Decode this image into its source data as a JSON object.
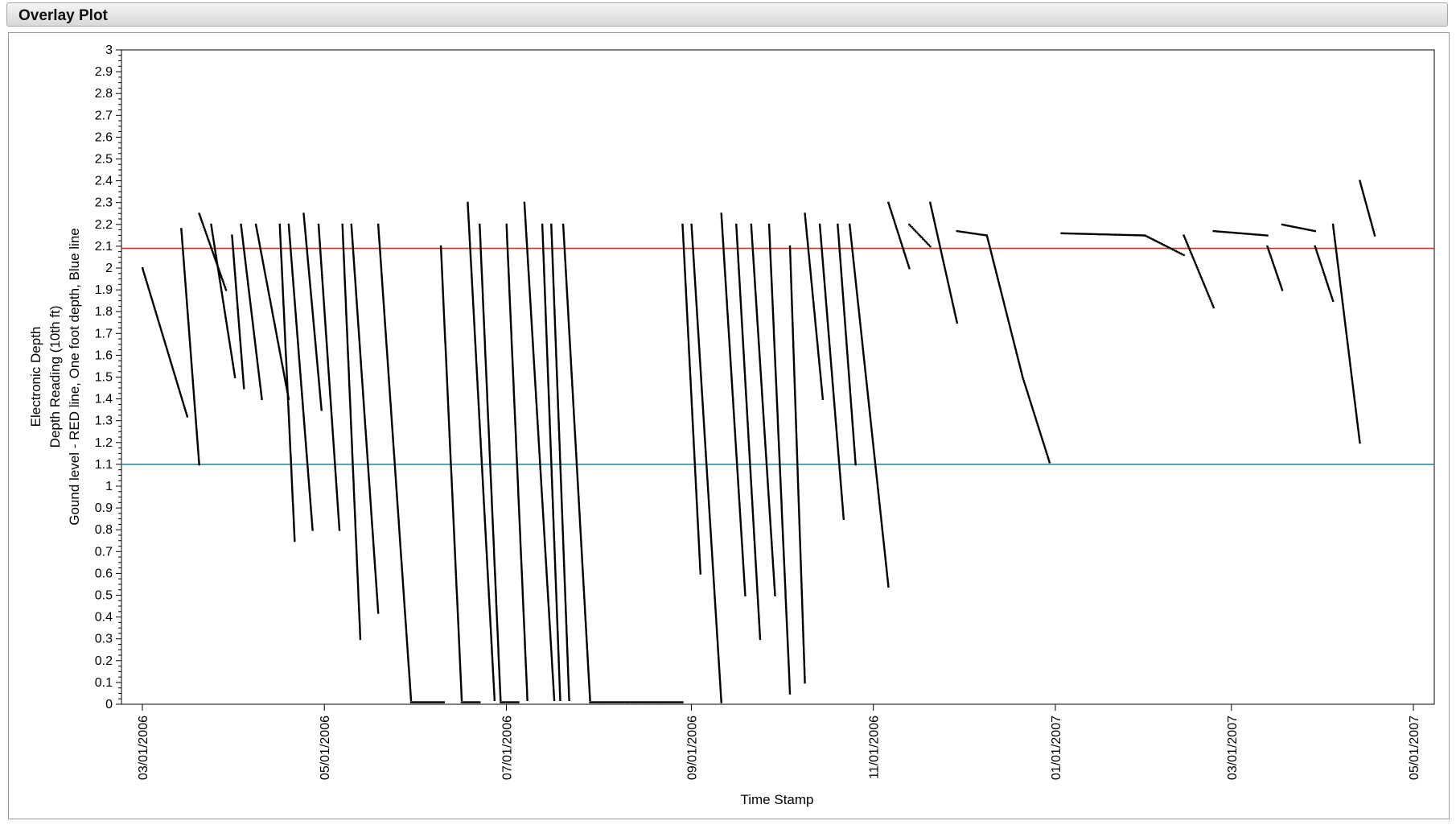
{
  "window": {
    "title": "Overlay Plot"
  },
  "chart_data": {
    "type": "scatter",
    "title": "",
    "xlabel": "Time Stamp",
    "ylabel_lines": [
      "Electronic Depth",
      "Depth Reading (10th ft)",
      "Gound level - RED line, One foot depth, Blue line"
    ],
    "ylim": [
      0,
      3
    ],
    "yticks": [
      "0",
      "0.1",
      "0.2",
      "0.3",
      "0.4",
      "0.5",
      "0.6",
      "0.7",
      "0.8",
      "0.9",
      "1",
      "1.1",
      "1.2",
      "1.3",
      "1.4",
      "1.5",
      "1.6",
      "1.7",
      "1.8",
      "1.9",
      "2",
      "2.1",
      "2.2",
      "2.3",
      "2.4",
      "2.5",
      "2.6",
      "2.7",
      "2.8",
      "2.9",
      "3"
    ],
    "xlim": [
      "2006-02-22",
      "2007-05-08"
    ],
    "xticks": [
      {
        "date": "2006-03-01",
        "label": "03/01/2006"
      },
      {
        "date": "2006-05-01",
        "label": "05/01/2006"
      },
      {
        "date": "2006-07-01",
        "label": "07/01/2006"
      },
      {
        "date": "2006-09-01",
        "label": "09/01/2006"
      },
      {
        "date": "2006-11-01",
        "label": "11/01/2006"
      },
      {
        "date": "2007-01-01",
        "label": "01/01/2007"
      },
      {
        "date": "2007-03-01",
        "label": "03/01/2007"
      },
      {
        "date": "2007-05-01",
        "label": "05/01/2007"
      }
    ],
    "grid": false,
    "reference_lines": [
      {
        "y": 2.09,
        "color": "#c0392b"
      },
      {
        "y": 1.1,
        "color": "#2a8fa0"
      }
    ],
    "series_color": "#000000",
    "segments": [
      {
        "start": "2006-03-01",
        "end": "2006-03-16",
        "y0": 2.0,
        "y1": 1.32
      },
      {
        "start": "2006-03-14",
        "end": "2006-03-20",
        "y0": 2.18,
        "y1": 1.1
      },
      {
        "start": "2006-03-20",
        "end": "2006-03-29",
        "y0": 2.25,
        "y1": 1.9
      },
      {
        "start": "2006-03-24",
        "end": "2006-04-01",
        "y0": 2.2,
        "y1": 1.5
      },
      {
        "start": "2006-03-31",
        "end": "2006-04-04",
        "y0": 2.15,
        "y1": 1.45
      },
      {
        "start": "2006-04-03",
        "end": "2006-04-10",
        "y0": 2.2,
        "y1": 1.4
      },
      {
        "start": "2006-04-08",
        "end": "2006-04-19",
        "y0": 2.2,
        "y1": 1.4
      },
      {
        "start": "2006-04-16",
        "end": "2006-04-21",
        "y0": 2.2,
        "y1": 0.75
      },
      {
        "start": "2006-04-19",
        "end": "2006-04-27",
        "y0": 2.2,
        "y1": 0.8
      },
      {
        "start": "2006-04-24",
        "end": "2006-04-30",
        "y0": 2.25,
        "y1": 1.35
      },
      {
        "start": "2006-04-29",
        "end": "2006-05-06",
        "y0": 2.2,
        "y1": 0.8
      },
      {
        "start": "2006-05-07",
        "end": "2006-05-13",
        "y0": 2.2,
        "y1": 0.3
      },
      {
        "start": "2006-05-10",
        "end": "2006-05-19",
        "y0": 2.2,
        "y1": 0.42
      },
      {
        "start": "2006-05-19",
        "end": "2006-05-30",
        "y0": 2.2,
        "y1": 0.02
      },
      {
        "start": "2006-05-30",
        "end": "2006-06-10",
        "y0": 0.01,
        "y1": 0.01
      },
      {
        "start": "2006-06-09",
        "end": "2006-06-16",
        "y0": 2.1,
        "y1": 0.02
      },
      {
        "start": "2006-06-16",
        "end": "2006-06-22",
        "y0": 0.01,
        "y1": 0.01
      },
      {
        "start": "2006-06-18",
        "end": "2006-06-27",
        "y0": 2.3,
        "y1": 0.02
      },
      {
        "start": "2006-06-22",
        "end": "2006-06-29",
        "y0": 2.2,
        "y1": 0.02
      },
      {
        "start": "2006-06-29",
        "end": "2006-07-05",
        "y0": 0.01,
        "y1": 0.01
      },
      {
        "start": "2006-07-01",
        "end": "2006-07-08",
        "y0": 2.2,
        "y1": 0.02
      },
      {
        "start": "2006-07-07",
        "end": "2006-07-17",
        "y0": 2.3,
        "y1": 0.02
      },
      {
        "start": "2006-07-13",
        "end": "2006-07-19",
        "y0": 2.2,
        "y1": 0.02
      },
      {
        "start": "2006-07-16",
        "end": "2006-07-22",
        "y0": 2.2,
        "y1": 0.02
      },
      {
        "start": "2006-07-20",
        "end": "2006-07-29",
        "y0": 2.2,
        "y1": 0.02
      },
      {
        "start": "2006-07-29",
        "end": "2006-08-29",
        "y0": 0.01,
        "y1": 0.01
      },
      {
        "start": "2006-08-29",
        "end": "2006-09-04",
        "y0": 2.2,
        "y1": 0.6
      },
      {
        "start": "2006-09-01",
        "end": "2006-09-11",
        "y0": 2.2,
        "y1": 0.01
      },
      {
        "start": "2006-09-11",
        "end": "2006-09-19",
        "y0": 2.25,
        "y1": 0.5
      },
      {
        "start": "2006-09-16",
        "end": "2006-09-24",
        "y0": 2.2,
        "y1": 0.3
      },
      {
        "start": "2006-09-21",
        "end": "2006-09-29",
        "y0": 2.2,
        "y1": 0.5
      },
      {
        "start": "2006-09-27",
        "end": "2006-10-04",
        "y0": 2.2,
        "y1": 0.05
      },
      {
        "start": "2006-10-04",
        "end": "2006-10-09",
        "y0": 2.1,
        "y1": 0.1
      },
      {
        "start": "2006-10-09",
        "end": "2006-10-15",
        "y0": 2.25,
        "y1": 1.4
      },
      {
        "start": "2006-10-14",
        "end": "2006-10-22",
        "y0": 2.2,
        "y1": 0.85
      },
      {
        "start": "2006-10-20",
        "end": "2006-10-26",
        "y0": 2.2,
        "y1": 1.1
      },
      {
        "start": "2006-10-24",
        "end": "2006-11-06",
        "y0": 2.2,
        "y1": 0.54
      },
      {
        "start": "2006-11-06",
        "end": "2006-11-13",
        "y0": 2.3,
        "y1": 2.0
      },
      {
        "start": "2006-11-13",
        "end": "2006-11-20",
        "y0": 2.2,
        "y1": 2.1
      },
      {
        "start": "2006-11-20",
        "end": "2006-11-29",
        "y0": 2.3,
        "y1": 1.75
      },
      {
        "start": "2006-11-29",
        "end": "2006-12-09",
        "y0": 2.17,
        "y1": 2.15
      },
      {
        "start": "2006-12-09",
        "end": "2006-12-21",
        "y0": 2.15,
        "y1": 1.5
      },
      {
        "start": "2006-12-21",
        "end": "2006-12-30",
        "y0": 1.5,
        "y1": 1.11
      },
      {
        "start": "2007-01-03",
        "end": "2007-01-31",
        "y0": 2.16,
        "y1": 2.15
      },
      {
        "start": "2007-01-31",
        "end": "2007-02-13",
        "y0": 2.15,
        "y1": 2.06
      },
      {
        "start": "2007-02-13",
        "end": "2007-02-23",
        "y0": 2.15,
        "y1": 1.82
      },
      {
        "start": "2007-02-23",
        "end": "2007-03-13",
        "y0": 2.17,
        "y1": 2.15
      },
      {
        "start": "2007-03-13",
        "end": "2007-03-18",
        "y0": 2.1,
        "y1": 1.9
      },
      {
        "start": "2007-03-18",
        "end": "2007-03-29",
        "y0": 2.2,
        "y1": 2.17
      },
      {
        "start": "2007-03-29",
        "end": "2007-04-04",
        "y0": 2.1,
        "y1": 1.85
      },
      {
        "start": "2007-04-04",
        "end": "2007-04-13",
        "y0": 2.2,
        "y1": 1.2
      },
      {
        "start": "2007-04-13",
        "end": "2007-04-18",
        "y0": 2.4,
        "y1": 2.15
      }
    ]
  }
}
